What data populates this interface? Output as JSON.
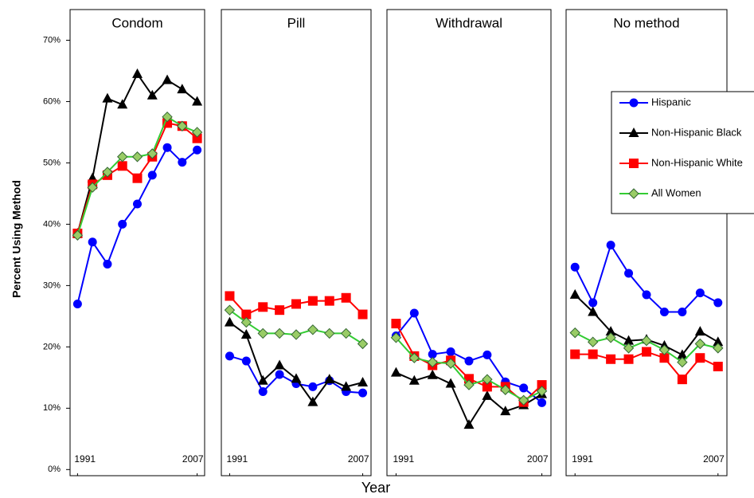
{
  "ylabel": "Percent Using Method",
  "xlabel": "Year",
  "chart_data": [
    {
      "type": "line",
      "title": "Condom",
      "x": [
        1991,
        1993,
        1995,
        1997,
        1999,
        2001,
        2003,
        2005,
        2007
      ],
      "xlim": [
        1990,
        2008
      ],
      "xticks": [
        1991,
        2007
      ],
      "ylim": [
        -1,
        75
      ],
      "yticks": [
        {
          "value": 0,
          "label": "0%"
        },
        {
          "value": 10,
          "label": "10%"
        },
        {
          "value": 20,
          "label": "20%"
        },
        {
          "value": 30,
          "label": "30%"
        },
        {
          "value": 40,
          "label": "40%"
        },
        {
          "value": 50,
          "label": "50%"
        },
        {
          "value": 60,
          "label": "60%"
        },
        {
          "value": 70,
          "label": "70%"
        }
      ],
      "series": [
        {
          "color": "#0000ff",
          "marker": "circle",
          "values": [
            27,
            37.1,
            33.5,
            40,
            43.3,
            48,
            52.5,
            50.1,
            52.1
          ]
        },
        {
          "color": "#000000",
          "marker": "triangle",
          "values": [
            38.5,
            47.5,
            60.5,
            59.5,
            64.5,
            61,
            63.5,
            62,
            60
          ]
        },
        {
          "color": "#ff0000",
          "marker": "square",
          "values": [
            38.5,
            46.5,
            48,
            49.5,
            47.5,
            51,
            56.5,
            56,
            54
          ]
        },
        {
          "color": "#33cc33",
          "marker": "diamond",
          "values": [
            38.2,
            46,
            48.5,
            51,
            51,
            51.5,
            57.5,
            56,
            55
          ]
        }
      ]
    },
    {
      "type": "line",
      "title": "Pill",
      "x": [
        1991,
        1993,
        1995,
        1997,
        1999,
        2001,
        2003,
        2005,
        2007
      ],
      "xlim": [
        1990,
        2008
      ],
      "xticks": [
        1991,
        2007
      ],
      "ylim": [
        -1,
        75
      ],
      "series": [
        {
          "color": "#0000ff",
          "marker": "circle",
          "values": [
            18.5,
            17.7,
            12.7,
            15.5,
            14,
            13.5,
            14.5,
            12.7,
            12.5
          ]
        },
        {
          "color": "#000000",
          "marker": "triangle",
          "values": [
            24,
            22,
            14.5,
            17,
            14.8,
            11,
            14.7,
            13.5,
            14.2
          ]
        },
        {
          "color": "#ff0000",
          "marker": "square",
          "values": [
            28.3,
            25.3,
            26.5,
            26,
            27,
            27.5,
            27.5,
            28,
            25.3
          ]
        },
        {
          "color": "#33cc33",
          "marker": "diamond",
          "values": [
            26,
            24,
            22.2,
            22.2,
            22,
            22.8,
            22.2,
            22.2,
            20.5
          ]
        }
      ]
    },
    {
      "type": "line",
      "title": "Withdrawal",
      "x": [
        1991,
        1993,
        1995,
        1997,
        1999,
        2001,
        2003,
        2005,
        2007
      ],
      "xlim": [
        1990,
        2008
      ],
      "xticks": [
        1991,
        2007
      ],
      "ylim": [
        -1,
        75
      ],
      "series": [
        {
          "color": "#0000ff",
          "marker": "circle",
          "values": [
            21.8,
            25.5,
            18.8,
            19.2,
            17.7,
            18.7,
            14.3,
            13.3,
            10.9
          ]
        },
        {
          "color": "#000000",
          "marker": "triangle",
          "values": [
            15.8,
            14.5,
            15.4,
            14,
            7.3,
            12,
            9.5,
            10.5,
            12.3
          ]
        },
        {
          "color": "#ff0000",
          "marker": "square",
          "values": [
            23.8,
            18.5,
            17,
            17.8,
            14.8,
            13.5,
            13.5,
            11,
            13.8
          ]
        },
        {
          "color": "#33cc33",
          "marker": "diamond",
          "values": [
            21.5,
            18.2,
            17.5,
            17.3,
            13.8,
            14.7,
            13,
            11.3,
            12.8
          ]
        }
      ]
    },
    {
      "type": "line",
      "title": "No method",
      "x": [
        1991,
        1993,
        1995,
        1997,
        1999,
        2001,
        2003,
        2005,
        2007
      ],
      "xlim": [
        1990,
        2008
      ],
      "xticks": [
        1991,
        2007
      ],
      "ylim": [
        -1,
        75
      ],
      "legend": "upper right",
      "series": [
        {
          "name": "Hispanic",
          "color": "#0000ff",
          "marker": "circle",
          "values": [
            33,
            27.2,
            36.6,
            32,
            28.5,
            25.7,
            25.7,
            28.8,
            27.2
          ]
        },
        {
          "name": "Non-Hispanic Black",
          "color": "#000000",
          "marker": "triangle",
          "values": [
            28.5,
            25.7,
            22.5,
            21,
            21.2,
            20.2,
            18.7,
            22.5,
            20.8
          ]
        },
        {
          "name": "Non-Hispanic White",
          "color": "#ff0000",
          "marker": "square",
          "values": [
            18.8,
            18.8,
            18,
            18,
            19.2,
            18.2,
            14.7,
            18.2,
            16.8
          ]
        },
        {
          "name": "All Women",
          "color": "#33cc33",
          "marker": "diamond",
          "values": [
            22.3,
            20.8,
            21.5,
            19.8,
            21,
            19.5,
            17.5,
            20.5,
            19.8
          ]
        }
      ]
    }
  ]
}
